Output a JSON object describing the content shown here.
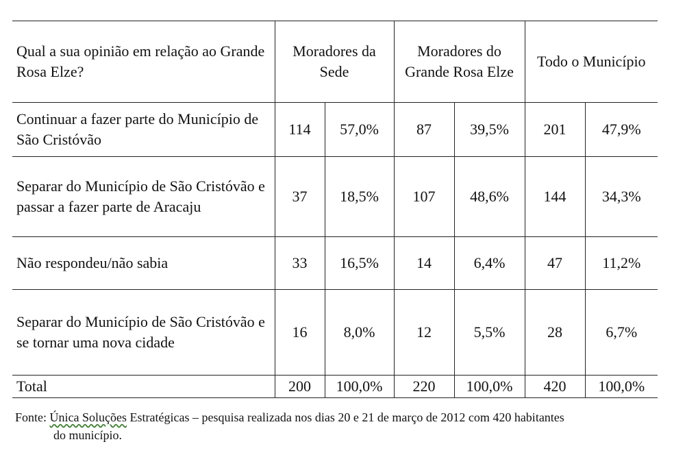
{
  "table": {
    "question": "Qual a sua opinião em relação ao Grande Rosa Elze?",
    "groups": [
      "Moradores da Sede",
      "Moradores do Grande Rosa Elze",
      "Todo o Município"
    ],
    "rows": [
      {
        "label": "Continuar a fazer parte do Município de São Cristóvão",
        "values": [
          "114",
          "57,0%",
          "87",
          "39,5%",
          "201",
          "47,9%"
        ]
      },
      {
        "label": "Separar do Município de São Cristóvão e passar a fazer parte de Aracaju",
        "values": [
          "37",
          "18,5%",
          "107",
          "48,6%",
          "144",
          "34,3%"
        ]
      },
      {
        "label": "Não respondeu/não sabia",
        "values": [
          "33",
          "16,5%",
          "14",
          "6,4%",
          "47",
          "11,2%"
        ]
      },
      {
        "label": "Separar do Município de São Cristóvão e se tornar uma nova cidade",
        "values": [
          "16",
          "8,0%",
          "12",
          "5,5%",
          "28",
          "6,7%"
        ]
      }
    ],
    "total": {
      "label": "Total",
      "values": [
        "200",
        "100,0%",
        "220",
        "100,0%",
        "420",
        "100,0%"
      ]
    }
  },
  "source": {
    "prefix": "Fonte: ",
    "org": "Única Soluções",
    "line1_rest": " Estratégicas – pesquisa realizada nos dias 20 e 21 de março de 2012 com 420 habitantes",
    "line2": "do município."
  }
}
